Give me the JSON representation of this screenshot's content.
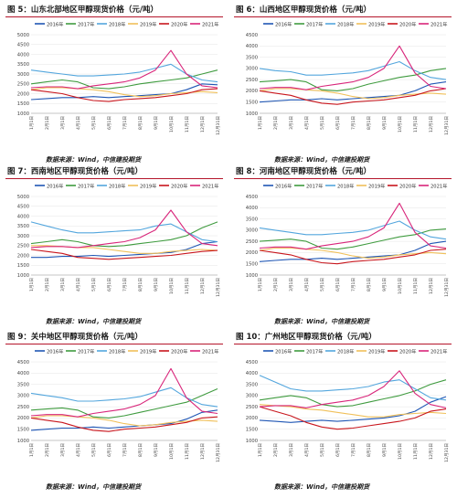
{
  "series_colors": [
    "#1f56b4",
    "#3f9b3f",
    "#53a6dd",
    "#f0c05a",
    "#c8161d",
    "#d8257a"
  ],
  "panels": [
    {
      "title": "图 5：山东北部地区甲醇现货价格（元/吨）",
      "source": "数据来源：Wind，中信建投期货"
    },
    {
      "title": "图 6：山西地区甲醇现货价格（元/吨）",
      "source": "数据来源：Wind，中信建投期货"
    },
    {
      "title": "图 7：西南地区甲醇现货价格（元/吨）",
      "source": "数据来源：Wind，中信建投期货"
    },
    {
      "title": "图 8：河南地区甲醇现货价格（元/吨）",
      "source": "数据来源：Wind，中信建投期货"
    },
    {
      "title": "图 9：关中地区甲醇现货价格（元/吨）",
      "source": "数据来源：Wind，中信建投期货"
    },
    {
      "title": "图 10：广州地区甲醇现货价格（元/吨）",
      "source": "数据来源：Wind，中信建投期货"
    }
  ],
  "chart_data": [
    {
      "type": "line",
      "ylim": [
        1000,
        5000
      ],
      "yticks": [
        1000,
        1500,
        2000,
        2500,
        3000,
        3500,
        4000,
        4500,
        5000
      ],
      "x": [
        "1月1日",
        "2月1日",
        "3月1日",
        "4月1日",
        "5月1日",
        "6月1日",
        "7月1日",
        "8月1日",
        "9月1日",
        "10月1日",
        "11月1日",
        "12月1日",
        "12月31日"
      ],
      "series": [
        {
          "name": "2016年",
          "values": [
            1700,
            1750,
            1800,
            1800,
            1850,
            1800,
            1850,
            1900,
            1950,
            2000,
            2200,
            2500,
            2450
          ]
        },
        {
          "name": "2017年",
          "values": [
            2500,
            2600,
            2700,
            2600,
            2300,
            2250,
            2350,
            2500,
            2600,
            2700,
            2800,
            3000,
            3200
          ]
        },
        {
          "name": "2018年",
          "values": [
            3200,
            3100,
            3000,
            2900,
            2900,
            2950,
            3000,
            3100,
            3300,
            3500,
            3000,
            2700,
            2600
          ]
        },
        {
          "name": "2019年",
          "values": [
            2200,
            2300,
            2300,
            2250,
            2200,
            2100,
            1950,
            1850,
            1900,
            2000,
            2050,
            2100,
            2050
          ]
        },
        {
          "name": "2020年",
          "values": [
            2200,
            2100,
            2000,
            1800,
            1650,
            1600,
            1700,
            1750,
            1800,
            1900,
            2000,
            2200,
            2250
          ]
        },
        {
          "name": "2021年",
          "values": [
            2300,
            2350,
            2350,
            2250,
            2400,
            2500,
            2600,
            2800,
            3200,
            4200,
            3000,
            2400,
            2300
          ]
        }
      ]
    },
    {
      "type": "line",
      "ylim": [
        1000,
        4500
      ],
      "yticks": [
        1000,
        1500,
        2000,
        2500,
        3000,
        3500,
        4000,
        4500
      ],
      "x": [
        "1月1日",
        "2月1日",
        "3月1日",
        "4月1日",
        "5月1日",
        "6月1日",
        "7月1日",
        "8月1日",
        "9月1日",
        "10月1日",
        "11月1日",
        "12月1日",
        "12月31日"
      ],
      "series": [
        {
          "name": "2016年",
          "values": [
            1500,
            1550,
            1600,
            1600,
            1650,
            1600,
            1650,
            1700,
            1750,
            1800,
            2000,
            2300,
            2400
          ]
        },
        {
          "name": "2017年",
          "values": [
            2400,
            2450,
            2500,
            2400,
            2050,
            2000,
            2100,
            2300,
            2450,
            2600,
            2700,
            2900,
            3000
          ]
        },
        {
          "name": "2018年",
          "values": [
            3000,
            2900,
            2850,
            2700,
            2700,
            2750,
            2800,
            2900,
            3100,
            3300,
            2900,
            2600,
            2500
          ]
        },
        {
          "name": "2019年",
          "values": [
            2000,
            2100,
            2100,
            2050,
            2000,
            1900,
            1750,
            1650,
            1700,
            1800,
            1850,
            1900,
            1850
          ]
        },
        {
          "name": "2020年",
          "values": [
            2000,
            1900,
            1800,
            1600,
            1450,
            1400,
            1500,
            1550,
            1600,
            1700,
            1800,
            2000,
            2100
          ]
        },
        {
          "name": "2021年",
          "values": [
            2100,
            2150,
            2150,
            2050,
            2200,
            2300,
            2400,
            2600,
            3000,
            4000,
            2800,
            2200,
            2100
          ]
        }
      ]
    },
    {
      "type": "line",
      "ylim": [
        1000,
        5000
      ],
      "yticks": [
        1000,
        1500,
        2000,
        2500,
        3000,
        3500,
        4000,
        4500,
        5000
      ],
      "x": [
        "1月1日",
        "2月1日",
        "3月1日",
        "4月1日",
        "5月1日",
        "6月1日",
        "7月1日",
        "8月1日",
        "9月1日",
        "10月1日",
        "11月1日",
        "12月1日",
        "12月31日"
      ],
      "series": [
        {
          "name": "2016年",
          "values": [
            1900,
            1900,
            1950,
            1950,
            2000,
            1950,
            2000,
            2050,
            2100,
            2150,
            2300,
            2600,
            2700
          ]
        },
        {
          "name": "2017年",
          "values": [
            2600,
            2700,
            2800,
            2700,
            2500,
            2450,
            2500,
            2600,
            2700,
            2800,
            3000,
            3400,
            3700
          ]
        },
        {
          "name": "2018年",
          "values": [
            3700,
            3500,
            3300,
            3150,
            3150,
            3200,
            3250,
            3300,
            3500,
            3600,
            3200,
            2800,
            2700
          ]
        },
        {
          "name": "2019年",
          "values": [
            2500,
            2500,
            2450,
            2400,
            2400,
            2300,
            2200,
            2100,
            2100,
            2200,
            2250,
            2300,
            2250
          ]
        },
        {
          "name": "2020年",
          "values": [
            2300,
            2200,
            2100,
            1900,
            1850,
            1800,
            1850,
            1900,
            1950,
            2000,
            2100,
            2200,
            2250
          ]
        },
        {
          "name": "2021年",
          "values": [
            2400,
            2450,
            2450,
            2400,
            2500,
            2600,
            2700,
            2900,
            3300,
            4300,
            3200,
            2600,
            2500
          ]
        }
      ]
    },
    {
      "type": "line",
      "ylim": [
        1000,
        4500
      ],
      "yticks": [
        1000,
        1500,
        2000,
        2500,
        3000,
        3500,
        4000,
        4500
      ],
      "x": [
        "1月1日",
        "2月1日",
        "3月1日",
        "4月1日",
        "5月1日",
        "6月1日",
        "7月1日",
        "8月1日",
        "9月1日",
        "10月1日",
        "11月1日",
        "12月1日",
        "12月31日"
      ],
      "series": [
        {
          "name": "2016年",
          "values": [
            1600,
            1650,
            1700,
            1700,
            1750,
            1700,
            1750,
            1800,
            1850,
            1900,
            2100,
            2400,
            2500
          ]
        },
        {
          "name": "2017年",
          "values": [
            2500,
            2550,
            2600,
            2500,
            2200,
            2150,
            2250,
            2400,
            2550,
            2700,
            2800,
            3000,
            3050
          ]
        },
        {
          "name": "2018年",
          "values": [
            3100,
            3000,
            2900,
            2800,
            2800,
            2850,
            2900,
            3000,
            3200,
            3400,
            3000,
            2700,
            2600
          ]
        },
        {
          "name": "2019年",
          "values": [
            2100,
            2200,
            2200,
            2150,
            2100,
            2000,
            1850,
            1750,
            1800,
            1900,
            1950,
            2000,
            1950
          ]
        },
        {
          "name": "2020年",
          "values": [
            2100,
            2000,
            1900,
            1700,
            1550,
            1500,
            1600,
            1650,
            1700,
            1800,
            1900,
            2100,
            2150
          ]
        },
        {
          "name": "2021年",
          "values": [
            2200,
            2250,
            2250,
            2150,
            2300,
            2400,
            2500,
            2700,
            3100,
            4200,
            2900,
            2300,
            2200
          ]
        }
      ]
    },
    {
      "type": "line",
      "ylim": [
        1000,
        4500
      ],
      "yticks": [
        1000,
        1500,
        2000,
        2500,
        3000,
        3500,
        4000,
        4500
      ],
      "x": [
        "1月1日",
        "2月1日",
        "3月1日",
        "4月1日",
        "5月1日",
        "6月1日",
        "7月1日",
        "8月1日",
        "9月1日",
        "10月1日",
        "11月1日",
        "12月1日",
        "12月31日"
      ],
      "series": [
        {
          "name": "2016年",
          "values": [
            1450,
            1500,
            1550,
            1550,
            1600,
            1550,
            1600,
            1650,
            1700,
            1750,
            1950,
            2250,
            2350
          ]
        },
        {
          "name": "2017年",
          "values": [
            2350,
            2400,
            2450,
            2350,
            2050,
            2000,
            2100,
            2250,
            2400,
            2550,
            2700,
            3000,
            3300
          ]
        },
        {
          "name": "2018年",
          "values": [
            3100,
            3000,
            2900,
            2750,
            2750,
            2800,
            2850,
            2950,
            3150,
            3350,
            2900,
            2600,
            2500
          ]
        },
        {
          "name": "2019年",
          "values": [
            2000,
            2100,
            2100,
            2050,
            2000,
            1900,
            1750,
            1650,
            1700,
            1800,
            1850,
            1900,
            1850
          ]
        },
        {
          "name": "2020年",
          "values": [
            2000,
            1900,
            1800,
            1600,
            1450,
            1400,
            1500,
            1550,
            1600,
            1700,
            1800,
            2000,
            2050
          ]
        },
        {
          "name": "2021年",
          "values": [
            2100,
            2150,
            2150,
            2050,
            2200,
            2300,
            2400,
            2600,
            3000,
            4200,
            2900,
            2300,
            2200
          ]
        }
      ]
    },
    {
      "type": "line",
      "ylim": [
        1000,
        4500
      ],
      "yticks": [
        1000,
        1500,
        2000,
        2500,
        3000,
        3500,
        4000,
        4500
      ],
      "x": [
        "1月1日",
        "2月1日",
        "3月1日",
        "4月1日",
        "5月1日",
        "6月1日",
        "7月1日",
        "8月1日",
        "9月1日",
        "10月1日",
        "11月1日",
        "12月1日",
        "12月31日"
      ],
      "series": [
        {
          "name": "2016年",
          "values": [
            1900,
            1850,
            1800,
            1850,
            1900,
            1850,
            1900,
            1950,
            2000,
            2100,
            2300,
            2700,
            2950
          ]
        },
        {
          "name": "2017年",
          "values": [
            2800,
            2900,
            3000,
            2900,
            2600,
            2500,
            2550,
            2700,
            2850,
            3000,
            3200,
            3500,
            3700
          ]
        },
        {
          "name": "2018年",
          "values": [
            3900,
            3600,
            3300,
            3200,
            3200,
            3250,
            3300,
            3400,
            3600,
            3700,
            3300,
            2900,
            2800
          ]
        },
        {
          "name": "2019年",
          "values": [
            2600,
            2550,
            2500,
            2400,
            2350,
            2250,
            2150,
            2050,
            2050,
            2150,
            2200,
            2250,
            2200
          ]
        },
        {
          "name": "2020年",
          "values": [
            2500,
            2300,
            2100,
            1800,
            1600,
            1500,
            1550,
            1650,
            1750,
            1850,
            2000,
            2300,
            2400
          ]
        },
        {
          "name": "2021年",
          "values": [
            2500,
            2550,
            2550,
            2450,
            2600,
            2700,
            2800,
            3000,
            3400,
            4100,
            3100,
            2600,
            2450
          ]
        }
      ]
    }
  ]
}
